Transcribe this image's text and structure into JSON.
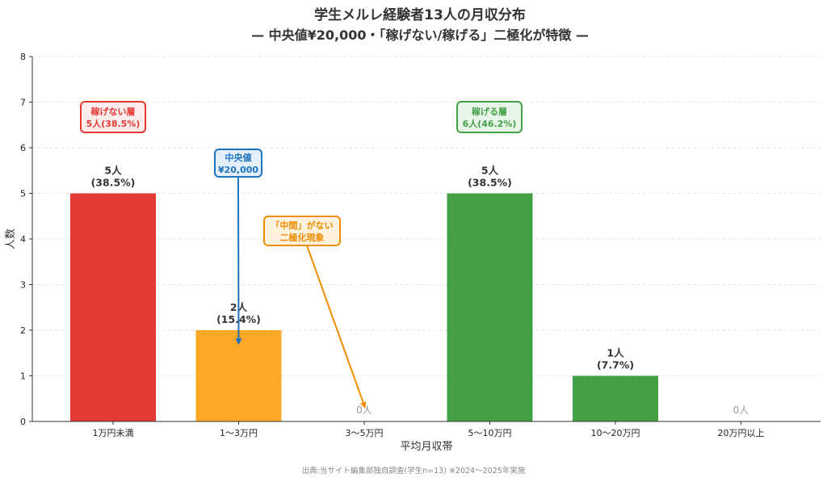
{
  "chart_data": {
    "type": "bar",
    "title": "学生メルレ経験者13人の月収分布",
    "subtitle": "— 中央値¥20,000・「稼げない/稼げる」二極化が特徴 —",
    "xlabel": "平均月収帯",
    "ylabel": "人数",
    "ylim": [
      0,
      8
    ],
    "yticks": [
      "0",
      "1",
      "2",
      "3",
      "4",
      "5",
      "6",
      "7",
      "8"
    ],
    "grid": true,
    "categories": [
      "1万円未満",
      "1〜3万円",
      "3〜5万円",
      "5〜10万円",
      "10〜20万円",
      "20万円以上"
    ],
    "values": [
      5,
      2,
      0,
      5,
      1,
      0
    ],
    "value_labels": [
      "5人",
      "2人",
      "0人",
      "5人",
      "1人",
      "0人"
    ],
    "percent_labels": [
      "(38.5%)",
      "(15.4%)",
      "",
      "(38.5%)",
      "(7.7%)",
      ""
    ],
    "bar_colors": [
      "#e53935",
      "#ffa726",
      "#ffa726",
      "#43a047",
      "#43a047",
      "#43a047"
    ],
    "annotations": [
      {
        "lines": [
          "稼げない層",
          "5人(38.5%)"
        ],
        "color": "#e53935",
        "fill": "#fdecec"
      },
      {
        "lines": [
          "稼げる層",
          "6人(46.2%)"
        ],
        "color": "#43a047",
        "fill": "#e8f5e9"
      },
      {
        "lines": [
          "中央値",
          "¥20,000"
        ],
        "color": "#1e73be",
        "fill": "#e3f0fb",
        "arrow_to": {
          "category": 1,
          "value": 1.75
        }
      },
      {
        "lines": [
          "「中間」がない",
          "二極化現象"
        ],
        "color": "#f08c00",
        "fill": "#fff3e0",
        "arrow_to": {
          "category": 2,
          "value": 0.35
        }
      }
    ],
    "source": "出典:当サイト編集部独自調査(学生n=13) ※2024〜2025年実施"
  }
}
